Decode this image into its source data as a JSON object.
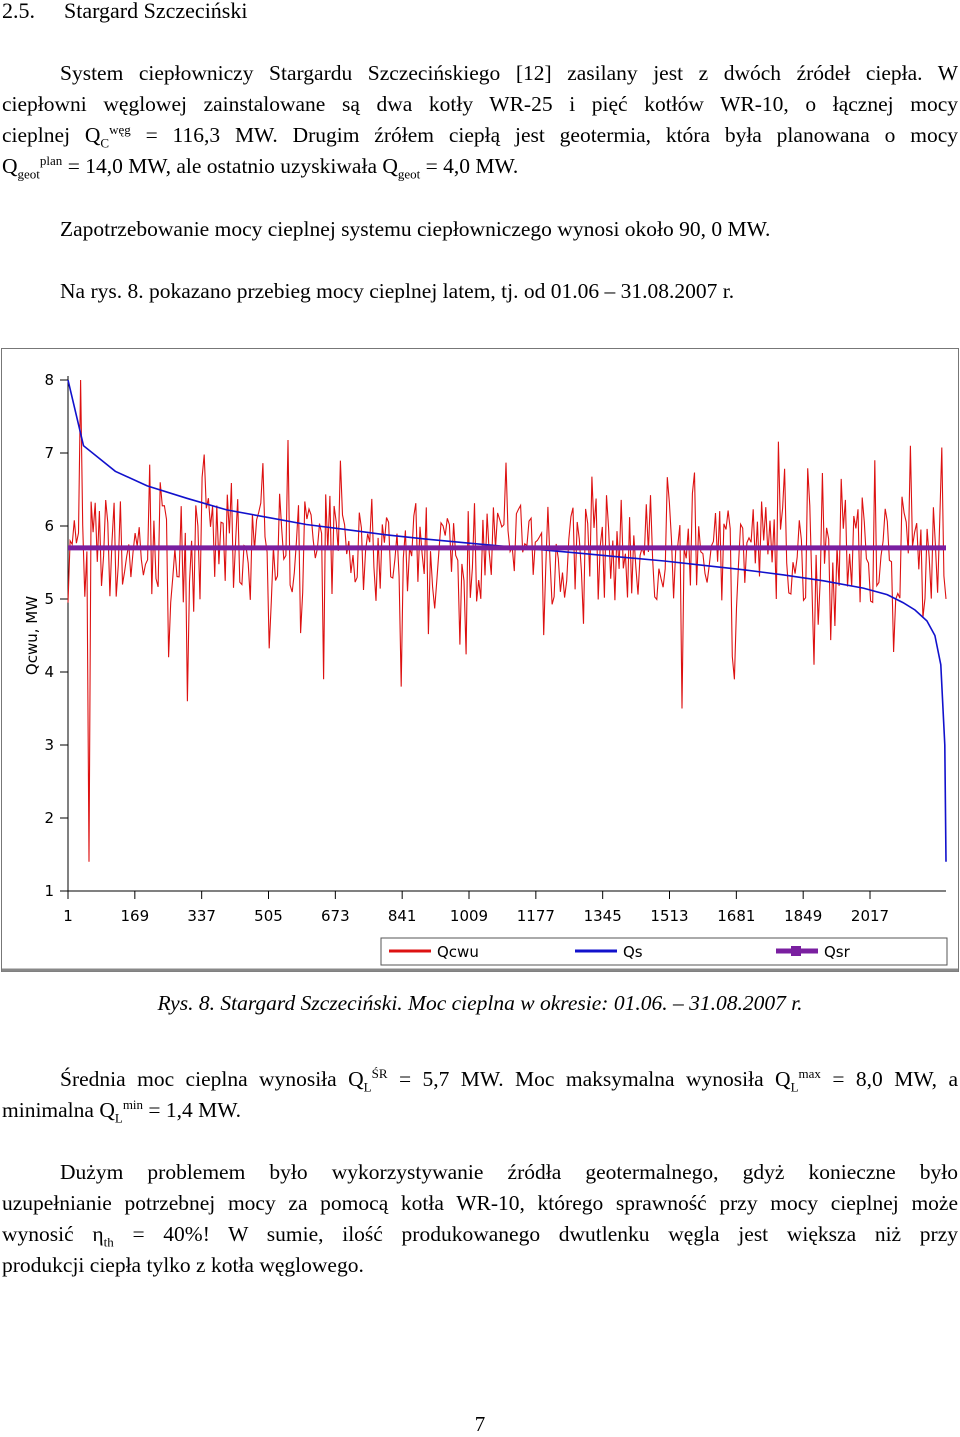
{
  "section": {
    "number": "2.5.",
    "title": "Stargard Szczeciński"
  },
  "intro": {
    "line1": "System ciepłowniczy Stargardu Szczecińskiego [12] zasilany jest z dwóch źródeł ciepła. W",
    "line2": "ciepłowni węglowej zainstalowane są dwa kotły WR-25 i pięć kotłów WR-10, o łącznej mocy",
    "line3_pre": "cieplnej Q",
    "line3_sub": "C",
    "line3_sup": "węg",
    "line3_post": " = 116,3 MW. Drugim źrółem ciepłą jest geotermia, która była planowana o mocy",
    "line4_q": "Q",
    "line4_sub": "geot",
    "line4_sup": "plan",
    "line4_mid": " = 14,0 MW, ale ostatnio uzyskiwała Q",
    "line4_sub2": "geot",
    "line4_post": " = 4,0 MW."
  },
  "demand": "Zapotrzebowanie mocy cieplnej systemu ciepłowniczego wynosi około 90, 0 MW.",
  "figure_ref": "Na rys. 8. pokazano przebieg mocy cieplnej latem, tj. od 01.06 – 31.08.2007 r.",
  "chart_data": {
    "type": "line",
    "ylabel": "Qcwu, MW",
    "xlabel": "",
    "ylim": [
      1,
      8
    ],
    "yticks": [
      "1",
      "2",
      "3",
      "4",
      "5",
      "6",
      "7",
      "8"
    ],
    "xlim": [
      1,
      2208
    ],
    "xticks": [
      "1",
      "169",
      "337",
      "505",
      "673",
      "841",
      "1009",
      "1177",
      "1345",
      "1513",
      "1681",
      "1849",
      "2017"
    ],
    "legend_position": "bottom",
    "series": [
      {
        "name": "Qcwu",
        "color": "#dd1111",
        "description_values": {
          "mean": 5.7,
          "max": 8.0,
          "min": 1.4
        }
      },
      {
        "name": "Qs",
        "color": "#1111cc",
        "x": [
          1,
          40,
          120,
          200,
          300,
          400,
          500,
          600,
          700,
          800,
          900,
          1000,
          1100,
          1200,
          1300,
          1400,
          1500,
          1600,
          1700,
          1800,
          1900,
          2000,
          2060,
          2100,
          2130,
          2160,
          2180,
          2195,
          2205,
          2208
        ],
        "y": [
          8.0,
          7.1,
          6.75,
          6.55,
          6.38,
          6.22,
          6.12,
          6.02,
          5.95,
          5.88,
          5.82,
          5.77,
          5.72,
          5.67,
          5.62,
          5.57,
          5.52,
          5.46,
          5.4,
          5.33,
          5.25,
          5.15,
          5.06,
          4.95,
          4.85,
          4.7,
          4.5,
          4.1,
          3.0,
          1.4
        ]
      },
      {
        "name": "Qsr",
        "color": "#7a1fa0",
        "y": 5.7
      }
    ]
  },
  "caption": "Rys. 8. Stargard Szczeciński. Moc cieplna w okresie: 01.06. – 31.08.2007 r.",
  "stats": {
    "l1_pre": "Średnia moc cieplna wynosiła Q",
    "l1_sub": "L",
    "l1_sup": "ŚR",
    "l1_mid": " = 5,7 MW. Moc maksymalna wynosiła Q",
    "l1_sub2": "L",
    "l1_sup2": "max",
    "l1_post": " = 8,0 MW, a",
    "l2_pre": "minimalna Q",
    "l2_sub": "L",
    "l2_sup": "min",
    "l2_post": " = 1,4 MW."
  },
  "problem": {
    "line1": "Dużym problemem było wykorzystywanie źródła geotermalnego, gdyż konieczne było",
    "line2": "uzupełnianie potrzebnej mocy za pomocą kotła WR-10, którego sprawność przy mocy cieplnej może",
    "line3_pre": "wynosić η",
    "line3_sub": "th",
    "line3_post": " = 40%! W sumie, ilość produkowanego dwutlenku węgla jest większa niż przy",
    "line4": "produkcji ciepła tylko z kotła węglowego."
  },
  "page_number": "7"
}
